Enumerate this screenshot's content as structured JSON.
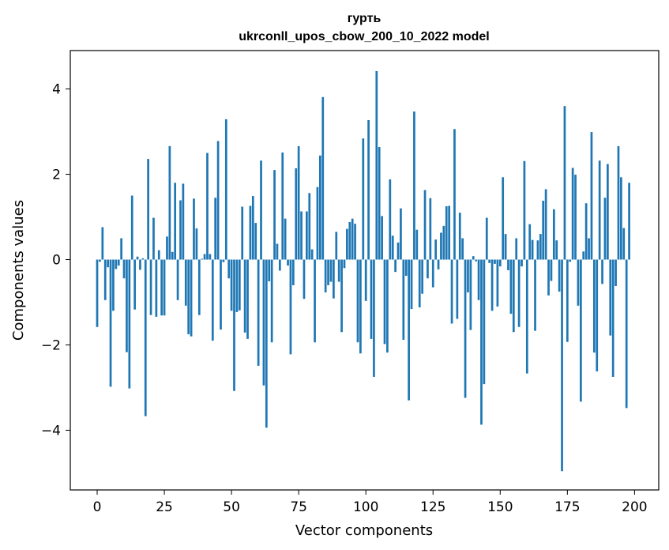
{
  "chart_data": {
    "type": "bar",
    "title_line1": "гурть",
    "title_line2": "ukrconll_upos_cbow_200_10_2022 model",
    "xlabel": "Vector components",
    "ylabel": "Components values",
    "xlim": [
      -10,
      209
    ],
    "ylim": [
      -5.4,
      4.9
    ],
    "xticks": [
      0,
      25,
      50,
      75,
      100,
      125,
      150,
      175,
      200
    ],
    "xtick_labels": [
      "0",
      "25",
      "50",
      "75",
      "100",
      "125",
      "150",
      "175",
      "200"
    ],
    "yticks": [
      -4,
      -2,
      0,
      2,
      4
    ],
    "ytick_labels": [
      "−4",
      "−2",
      "0",
      "2",
      "4"
    ],
    "bar_color": "#1f77b4",
    "values": [
      -1.58,
      -0.05,
      0.76,
      -0.95,
      -0.18,
      -2.98,
      -1.2,
      -0.22,
      -0.14,
      0.5,
      -0.44,
      -2.17,
      -3.02,
      1.5,
      -1.17,
      0.07,
      -0.24,
      0.03,
      -3.67,
      2.36,
      -1.3,
      0.98,
      -1.34,
      0.22,
      -1.31,
      -1.31,
      0.54,
      2.66,
      0.18,
      1.8,
      -0.95,
      1.39,
      1.78,
      -1.08,
      -1.75,
      -1.8,
      1.43,
      0.73,
      -1.3,
      0.02,
      0.13,
      2.5,
      0.13,
      -1.9,
      1.45,
      2.78,
      -1.64,
      -0.06,
      3.29,
      -0.44,
      -1.2,
      -3.08,
      -1.23,
      -1.19,
      1.24,
      -1.71,
      -1.86,
      1.26,
      1.49,
      0.86,
      -2.49,
      2.32,
      -2.95,
      -3.94,
      -0.51,
      -1.94,
      2.1,
      0.37,
      -0.26,
      2.51,
      0.96,
      -0.14,
      -2.22,
      -0.6,
      2.14,
      2.66,
      1.13,
      -0.92,
      1.13,
      1.56,
      0.24,
      -1.94,
      1.7,
      2.44,
      3.81,
      -0.77,
      -0.6,
      -0.52,
      -0.91,
      0.65,
      -0.52,
      -1.7,
      -0.2,
      0.72,
      0.88,
      0.96,
      0.84,
      -1.94,
      -2.2,
      2.84,
      -0.97,
      3.27,
      -1.86,
      -2.75,
      4.42,
      2.64,
      1.02,
      -1.98,
      -2.18,
      1.88,
      0.56,
      -0.29,
      0.4,
      1.2,
      -1.88,
      -0.38,
      -3.3,
      -1.16,
      3.47,
      0.7,
      -1.12,
      -0.8,
      1.63,
      -0.44,
      1.44,
      -0.65,
      0.47,
      -0.23,
      0.63,
      0.79,
      1.25,
      1.26,
      -1.5,
      3.06,
      -1.39,
      1.1,
      0.5,
      -3.24,
      -0.77,
      -1.65,
      0.08,
      -0.04,
      -0.95,
      -3.87,
      -2.92,
      0.98,
      -0.08,
      -1.2,
      -0.1,
      -1.1,
      -0.16,
      1.93,
      0.6,
      -0.25,
      -1.27,
      -1.7,
      0.5,
      -1.58,
      -0.16,
      2.31,
      -2.67,
      0.83,
      0.46,
      -1.67,
      0.45,
      0.6,
      1.38,
      1.65,
      -0.84,
      -0.5,
      1.18,
      0.45,
      -0.75,
      -4.96,
      3.6,
      -1.93,
      -0.05,
      2.15,
      1.99,
      -1.08,
      -3.33,
      0.19,
      1.32,
      0.5,
      2.99,
      -2.18,
      -2.62,
      2.32,
      -0.57,
      1.45,
      2.24,
      -1.78,
      -2.75,
      -0.62,
      2.66,
      1.93,
      0.74,
      -3.48,
      1.8
    ]
  }
}
